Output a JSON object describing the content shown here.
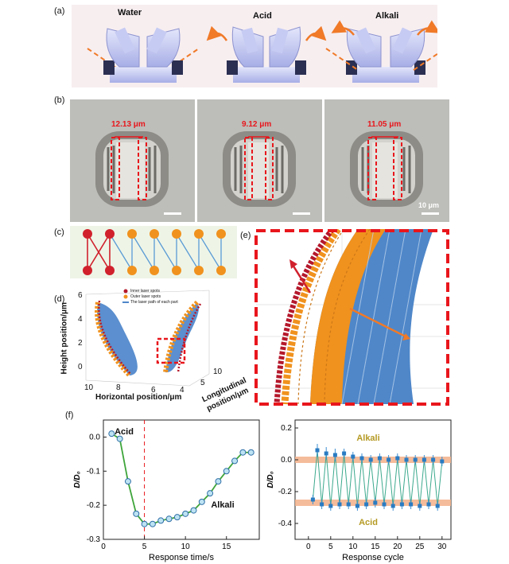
{
  "figure": {
    "panels": {
      "a": "(a)",
      "b": "(b)",
      "c": "(c)",
      "d": "(d)",
      "e": "(e)",
      "f": "(f)"
    },
    "panel_a": {
      "states": [
        "Water",
        "Acid",
        "Alkali"
      ]
    },
    "panel_b": {
      "widths": [
        "12.13 μm",
        "9.12 μm",
        "11.05 μm"
      ],
      "scale_bar": "10 μm"
    },
    "panel_d": {
      "legend": [
        "Inner laser spots",
        "Outer laser spots",
        "The laser path of each part"
      ],
      "z_label": "Height position/μm",
      "x_label": "Horizontal position/μm",
      "y_label_line1": "Longitudinal",
      "y_label_line2": "position/μm",
      "z_ticks": [
        "6",
        "4",
        "2",
        "0"
      ],
      "x_ticks": [
        "10",
        "8",
        "6",
        "4"
      ],
      "y_ticks": [
        "5",
        "10"
      ]
    },
    "colors": {
      "inner_spot": "#b5182b",
      "outer_spot": "#f0921e",
      "laser_path": "#4f87c9",
      "highlight_box": "#e8161c",
      "arrow_orange": "#f07a28"
    }
  },
  "chart_data": [
    {
      "type": "line",
      "xlabel": "Response time/s",
      "ylabel": "D/D₀",
      "xlim": [
        0,
        19
      ],
      "ylim": [
        -0.3,
        0.05
      ],
      "xticks": [
        0,
        5,
        10,
        15
      ],
      "yticks": [
        0.0,
        -0.1,
        -0.2,
        -0.3
      ],
      "ytick_labels": [
        "0.0",
        "-0.1",
        "-0.2",
        "-0.3"
      ],
      "annotations": [
        "Acid",
        "Alkali"
      ],
      "vline_x": 5,
      "x": [
        1,
        2,
        3,
        4,
        5,
        6,
        7,
        8,
        9,
        10,
        11,
        12,
        13,
        14,
        15,
        16,
        17,
        18
      ],
      "y": [
        0.01,
        -0.005,
        -0.13,
        -0.225,
        -0.255,
        -0.255,
        -0.245,
        -0.24,
        -0.235,
        -0.225,
        -0.215,
        -0.19,
        -0.165,
        -0.13,
        -0.1,
        -0.07,
        -0.045,
        -0.045
      ],
      "grid": false
    },
    {
      "type": "scatter",
      "xlabel": "Response cycle",
      "ylabel": "D/D₀",
      "xlim": [
        -3,
        32
      ],
      "ylim": [
        -0.5,
        0.25
      ],
      "xticks": [
        0,
        5,
        10,
        15,
        20,
        25,
        30
      ],
      "yticks": [
        0.2,
        0.0,
        -0.2,
        -0.4
      ],
      "ytick_labels": [
        "0.2",
        "0.0",
        "-0.2",
        "-0.4"
      ],
      "annotations": [
        "Alkali",
        "Acid"
      ],
      "bands": [
        0.0,
        -0.27
      ],
      "x": [
        1,
        2,
        3,
        4,
        5,
        6,
        7,
        8,
        9,
        10,
        11,
        12,
        13,
        14,
        15,
        16,
        17,
        18,
        19,
        20,
        21,
        22,
        23,
        24,
        25,
        26,
        27,
        28,
        29,
        30
      ],
      "y": [
        -0.25,
        0.06,
        -0.28,
        0.04,
        -0.29,
        0.03,
        -0.28,
        0.04,
        -0.28,
        0.02,
        -0.29,
        0.01,
        -0.28,
        0.0,
        -0.27,
        0.01,
        -0.28,
        0.0,
        -0.29,
        0.01,
        -0.28,
        0.0,
        -0.28,
        0.0,
        -0.29,
        0.0,
        -0.28,
        0.0,
        -0.29,
        -0.01
      ],
      "error": [
        0.03,
        0.04,
        0.03,
        0.04,
        0.03,
        0.04,
        0.03,
        0.03,
        0.03,
        0.03,
        0.03,
        0.03,
        0.03,
        0.03,
        0.03,
        0.03,
        0.03,
        0.03,
        0.03,
        0.03,
        0.03,
        0.03,
        0.03,
        0.03,
        0.03,
        0.03,
        0.03,
        0.03,
        0.03,
        0.03
      ],
      "grid": false
    }
  ]
}
